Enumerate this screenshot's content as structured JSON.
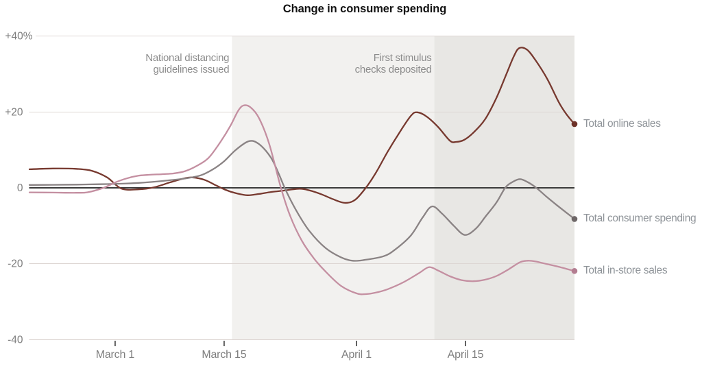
{
  "chart_data": {
    "type": "line",
    "title": "Change in consumer spending",
    "x_axis": {
      "days_total": 70,
      "ticks": [
        {
          "day": 11,
          "label": "March 1"
        },
        {
          "day": 25,
          "label": "March 15"
        },
        {
          "day": 42,
          "label": "April 1"
        },
        {
          "day": 56,
          "label": "April 15"
        }
      ]
    },
    "y_axis": {
      "unit": "percent",
      "min": -40,
      "max": 40,
      "ticks": [
        {
          "value": 40,
          "label": "+40%"
        },
        {
          "value": 20,
          "label": "+20"
        },
        {
          "value": 0,
          "label": "0"
        },
        {
          "value": -20,
          "label": "-20"
        },
        {
          "value": -40,
          "label": "-40"
        }
      ]
    },
    "grid": true,
    "legend_position": "right-of-line-ends",
    "colors": {
      "background": "#ffffff",
      "grid_line": "#ddd6d3",
      "zero_line": "#3a3a3a",
      "axis_label": "#7e7e7e",
      "tick_mark": "#3a3a3a",
      "annotation_text": "#8c8c8c",
      "series_label_text": "#8f9499",
      "title_text": "#121212"
    },
    "shaded_regions": [
      {
        "start_day": 26,
        "end_day": 52,
        "color": "#f2f1ef"
      },
      {
        "start_day": 52,
        "end_day": 70,
        "color": "#e8e7e4"
      }
    ],
    "annotations": [
      {
        "lines": [
          "National distancing",
          "guidelines issued"
        ],
        "anchor_day": 26,
        "align": "right"
      },
      {
        "lines": [
          "First stimulus",
          "checks deposited"
        ],
        "anchor_day": 52,
        "align": "right"
      }
    ],
    "series": [
      {
        "name": "Total online sales",
        "color": "#77392f",
        "dot_color": "#6d3228",
        "points": [
          [
            0,
            4.9
          ],
          [
            3,
            5.1
          ],
          [
            6,
            5.0
          ],
          [
            8,
            4.5
          ],
          [
            10,
            2.7
          ],
          [
            11.8,
            -0.2
          ],
          [
            14,
            -0.4
          ],
          [
            16,
            0.15
          ],
          [
            18,
            1.4
          ],
          [
            19.8,
            2.45
          ],
          [
            20.9,
            2.75
          ],
          [
            22.5,
            2.1
          ],
          [
            24,
            0.6
          ],
          [
            25.2,
            -0.55
          ],
          [
            26.5,
            -1.4
          ],
          [
            28,
            -1.95
          ],
          [
            29.5,
            -1.6
          ],
          [
            31,
            -1.1
          ],
          [
            32.5,
            -0.75
          ],
          [
            34.7,
            -0.25
          ],
          [
            36,
            -0.7
          ],
          [
            37.5,
            -1.7
          ],
          [
            39,
            -3.0
          ],
          [
            40.5,
            -3.95
          ],
          [
            41.8,
            -3.2
          ],
          [
            43.2,
            0
          ],
          [
            44.5,
            4.0
          ],
          [
            46,
            9.5
          ],
          [
            47.5,
            14.5
          ],
          [
            49,
            19.0
          ],
          [
            49.8,
            19.9
          ],
          [
            51,
            18.8
          ],
          [
            52.5,
            16.0
          ],
          [
            54,
            12.4
          ],
          [
            54.8,
            12.1
          ],
          [
            55.8,
            12.6
          ],
          [
            57,
            14.5
          ],
          [
            58.5,
            18.0
          ],
          [
            60,
            23.8
          ],
          [
            61.3,
            30.2
          ],
          [
            62.2,
            34.6
          ],
          [
            62.9,
            36.8
          ],
          [
            63.9,
            36.4
          ],
          [
            65,
            33.6
          ],
          [
            66.5,
            28.7
          ],
          [
            68,
            22.5
          ],
          [
            69,
            19.3
          ],
          [
            70,
            16.8
          ]
        ]
      },
      {
        "name": "Total consumer spending",
        "color": "#8a8384",
        "dot_color": "#6e6768",
        "points": [
          [
            0,
            0.75
          ],
          [
            3,
            0.8
          ],
          [
            6,
            0.85
          ],
          [
            9,
            0.95
          ],
          [
            12,
            1.1
          ],
          [
            14,
            1.3
          ],
          [
            16,
            1.6
          ],
          [
            18,
            2.0
          ],
          [
            20,
            2.45
          ],
          [
            22,
            3.3
          ],
          [
            23.5,
            4.8
          ],
          [
            25,
            7.0
          ],
          [
            26.5,
            10.0
          ],
          [
            28.2,
            12.3
          ],
          [
            29.5,
            11.5
          ],
          [
            31,
            8.0
          ],
          [
            32,
            3.8
          ],
          [
            33,
            -1.0
          ],
          [
            34.5,
            -6.8
          ],
          [
            36,
            -11.5
          ],
          [
            38,
            -15.8
          ],
          [
            40,
            -18.3
          ],
          [
            41.5,
            -19.2
          ],
          [
            43,
            -19.0
          ],
          [
            45.5,
            -18.0
          ],
          [
            47,
            -16.2
          ],
          [
            49,
            -12.5
          ],
          [
            50.5,
            -7.8
          ],
          [
            51.7,
            -4.9
          ],
          [
            53,
            -6.8
          ],
          [
            54.5,
            -10.0
          ],
          [
            55.9,
            -12.4
          ],
          [
            57.3,
            -10.8
          ],
          [
            58.6,
            -7.5
          ],
          [
            60,
            -3.8
          ],
          [
            61.1,
            0
          ],
          [
            62,
            1.5
          ],
          [
            63,
            2.3
          ],
          [
            64,
            1.5
          ],
          [
            65.1,
            0
          ],
          [
            66.5,
            -2.5
          ],
          [
            68,
            -5.0
          ],
          [
            70,
            -8.2
          ]
        ]
      },
      {
        "name": "Total in-store sales",
        "color": "#c48fa1",
        "dot_color": "#b37d91",
        "points": [
          [
            0,
            -1.2
          ],
          [
            3,
            -1.25
          ],
          [
            6,
            -1.3
          ],
          [
            7.5,
            -1.15
          ],
          [
            9.5,
            0
          ],
          [
            11,
            1.4
          ],
          [
            12.5,
            2.5
          ],
          [
            14,
            3.2
          ],
          [
            15.5,
            3.45
          ],
          [
            17,
            3.6
          ],
          [
            18.5,
            3.8
          ],
          [
            20,
            4.4
          ],
          [
            21.5,
            5.8
          ],
          [
            23,
            7.9
          ],
          [
            24.5,
            12.0
          ],
          [
            25.8,
            16.3
          ],
          [
            26.8,
            20.3
          ],
          [
            27.5,
            21.7
          ],
          [
            28.4,
            21.2
          ],
          [
            29.5,
            18.3
          ],
          [
            30.8,
            11.5
          ],
          [
            32.3,
            0
          ],
          [
            33.5,
            -7.5
          ],
          [
            35,
            -14.0
          ],
          [
            36.5,
            -18.5
          ],
          [
            38,
            -22.0
          ],
          [
            40,
            -25.8
          ],
          [
            42,
            -27.8
          ],
          [
            43.2,
            -28.0
          ],
          [
            44.5,
            -27.6
          ],
          [
            46,
            -26.7
          ],
          [
            48,
            -24.9
          ],
          [
            50,
            -22.5
          ],
          [
            51.3,
            -20.9
          ],
          [
            52.5,
            -21.8
          ],
          [
            54,
            -23.3
          ],
          [
            55.5,
            -24.3
          ],
          [
            57,
            -24.6
          ],
          [
            58.5,
            -24.2
          ],
          [
            60,
            -23.2
          ],
          [
            61.5,
            -21.5
          ],
          [
            63,
            -19.6
          ],
          [
            64,
            -19.2
          ],
          [
            65,
            -19.4
          ],
          [
            66.5,
            -20.1
          ],
          [
            68,
            -20.8
          ],
          [
            70,
            -21.9
          ]
        ]
      }
    ]
  }
}
